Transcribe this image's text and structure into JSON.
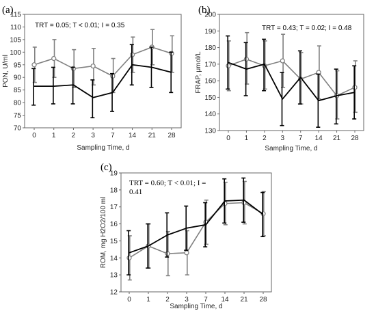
{
  "chart_data": [
    {
      "type": "line",
      "panel": "(a)",
      "annotation": "TRT = 0.05; T < 0.01; I = 0.35",
      "xlabel": "Sampling Time, d",
      "ylabel": "PON, U/ml",
      "categories": [
        "0",
        "1",
        "2",
        "3",
        "7",
        "14",
        "21",
        "28"
      ],
      "ylim": [
        70,
        115
      ],
      "yticks": [
        70,
        75,
        80,
        85,
        90,
        95,
        100,
        105,
        110,
        115
      ],
      "grid": false,
      "series": [
        {
          "color": "#808080",
          "marker": "open-circle",
          "values": [
            95,
            97.5,
            93.5,
            94.5,
            90.5,
            99,
            102,
            99.5
          ],
          "err_low": [
            88,
            90,
            86,
            87,
            84,
            92,
            95,
            92
          ],
          "err_high": [
            102,
            105,
            101,
            101.5,
            97.5,
            106,
            109,
            106.5
          ]
        },
        {
          "color": "#000000",
          "marker": "none",
          "values": [
            86.5,
            86.5,
            87,
            82,
            84,
            95,
            94,
            92
          ],
          "err_low": [
            79,
            79.5,
            79.5,
            74,
            76.5,
            87,
            86,
            84
          ],
          "err_high": [
            93.5,
            94,
            94,
            89,
            91.5,
            103,
            102,
            100
          ]
        }
      ]
    },
    {
      "type": "line",
      "panel": "(b)",
      "annotation": "TRT = 0.43; T = 0.02; I = 0.48",
      "xlabel": "Sampling Time, d",
      "ylabel": "FRAP, μmol/L",
      "categories": [
        "0",
        "1",
        "2",
        "3",
        "7",
        "14",
        "21",
        "28"
      ],
      "ylim": [
        130,
        200
      ],
      "yticks": [
        130,
        140,
        150,
        160,
        170,
        180,
        190,
        200
      ],
      "grid": false,
      "series": [
        {
          "color": "#808080",
          "marker": "open-circle",
          "values": [
            169,
            173,
            169,
            172,
            161,
            165,
            151,
            156
          ],
          "err_low": [
            154,
            158,
            155,
            156,
            146,
            149,
            137,
            141
          ],
          "err_high": [
            184,
            189,
            184,
            188,
            177,
            181,
            166,
            172
          ]
        },
        {
          "color": "#000000",
          "marker": "none",
          "values": [
            171,
            167,
            170,
            149,
            162,
            148,
            151,
            153
          ],
          "err_low": [
            155,
            151,
            154,
            133,
            146,
            132,
            134,
            137
          ],
          "err_high": [
            187,
            183,
            185,
            165,
            178,
            164,
            167,
            169
          ]
        }
      ]
    },
    {
      "type": "line",
      "panel": "(c)",
      "annotation": [
        "TRT = 0.60; T < 0.01; I =",
        "0.41"
      ],
      "xlabel": "Sampling Time, d",
      "ylabel": "ROM, mg H2O2/100 ml",
      "categories": [
        "0",
        "1",
        "2",
        "3",
        "7",
        "14",
        "21",
        "28"
      ],
      "ylim": [
        12,
        19
      ],
      "yticks": [
        12,
        13,
        14,
        15,
        16,
        17,
        18,
        19
      ],
      "grid": false,
      "series": [
        {
          "color": "#808080",
          "marker": "open-circle",
          "values": [
            14,
            14.7,
            14.25,
            14.3,
            16.1,
            17.2,
            17.25,
            16.6
          ],
          "err_low": [
            12.7,
            13.4,
            12.95,
            13,
            14.8,
            15.95,
            16,
            15.3
          ],
          "err_high": [
            15.3,
            16,
            15.55,
            15.6,
            17.4,
            18.45,
            18.5,
            17.9
          ]
        },
        {
          "color": "#000000",
          "marker": "none",
          "values": [
            14.3,
            14.7,
            15.35,
            15.75,
            15.95,
            17.35,
            17.4,
            16.55
          ],
          "err_low": [
            13,
            13.4,
            14.05,
            14.45,
            14.65,
            16.05,
            16.1,
            15.25
          ],
          "err_high": [
            15.6,
            16,
            16.65,
            17.05,
            17.25,
            18.65,
            18.7,
            17.85
          ]
        }
      ]
    }
  ]
}
